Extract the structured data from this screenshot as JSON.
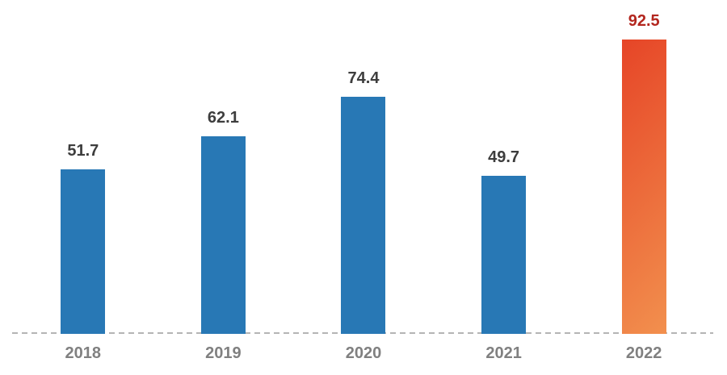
{
  "chart_data": {
    "type": "bar",
    "categories": [
      "2018",
      "2019",
      "2020",
      "2021",
      "2022"
    ],
    "values": [
      51.7,
      62.1,
      74.4,
      49.7,
      92.5
    ],
    "value_labels": [
      "51.7",
      "62.1",
      "74.4",
      "49.7",
      "92.5"
    ],
    "title": "",
    "xlabel": "",
    "ylabel": "",
    "ylim": [
      0,
      92.5
    ],
    "grid": false,
    "legend_position": "none",
    "baseline_style": "dashed",
    "highlight_index": 4,
    "colors": {
      "bar": "#2878b5",
      "highlight_gradient_start": "#e64527",
      "highlight_gradient_end": "#f2904e",
      "value_label": "#3d3d3d",
      "highlight_value_label": "#b3261e",
      "category_label": "#808080",
      "baseline": "#b5b5b5",
      "background": "#ffffff"
    }
  }
}
